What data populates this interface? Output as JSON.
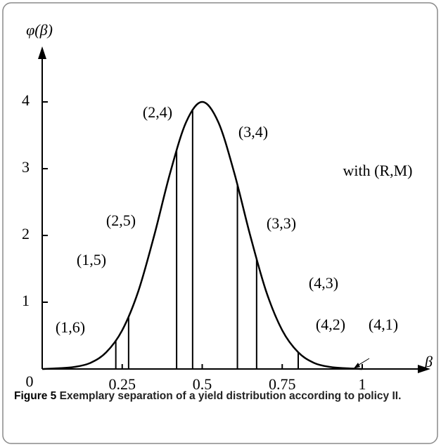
{
  "chart_data": {
    "type": "line",
    "ylabel": "φ(β)",
    "xlabel": "β",
    "x": [
      0,
      0.05,
      0.1,
      0.15,
      0.2,
      0.25,
      0.3,
      0.35,
      0.4,
      0.45,
      0.5,
      0.55,
      0.6,
      0.65,
      0.7,
      0.75,
      0.8,
      0.85,
      0.9,
      0.95,
      1
    ],
    "series": [
      {
        "color": "#000000",
        "values": [
          0,
          0.01,
          0.03,
          0.09,
          0.25,
          0.58,
          1.16,
          2.0,
          2.94,
          3.7,
          4,
          3.7,
          2.94,
          2.0,
          1.16,
          0.58,
          0.25,
          0.09,
          0.03,
          0.01,
          0
        ]
      }
    ],
    "separators": {
      "x": [
        0.23,
        0.27,
        0.42,
        0.47,
        0.61,
        0.67,
        0.8
      ],
      "values": [
        0.42,
        0.78,
        3.28,
        3.89,
        2.75,
        1.64,
        0.25
      ]
    },
    "annotations": [
      "(1,6)",
      "(1,5)",
      "(2,5)",
      "(2,4)",
      "(3,4)",
      "(3,3)",
      "(4,3)",
      "(4,2)",
      "(4,1)",
      "with (R,M)"
    ],
    "xlim": [
      0,
      1
    ],
    "ylim": [
      0,
      4
    ],
    "xticks": [
      0,
      0.25,
      0.5,
      0.75,
      1
    ],
    "yticks": [
      1,
      2,
      3,
      4
    ]
  },
  "caption": {
    "label": "Figure 5",
    "text": "Exemplary separation of a yield distribution according to policy II."
  }
}
